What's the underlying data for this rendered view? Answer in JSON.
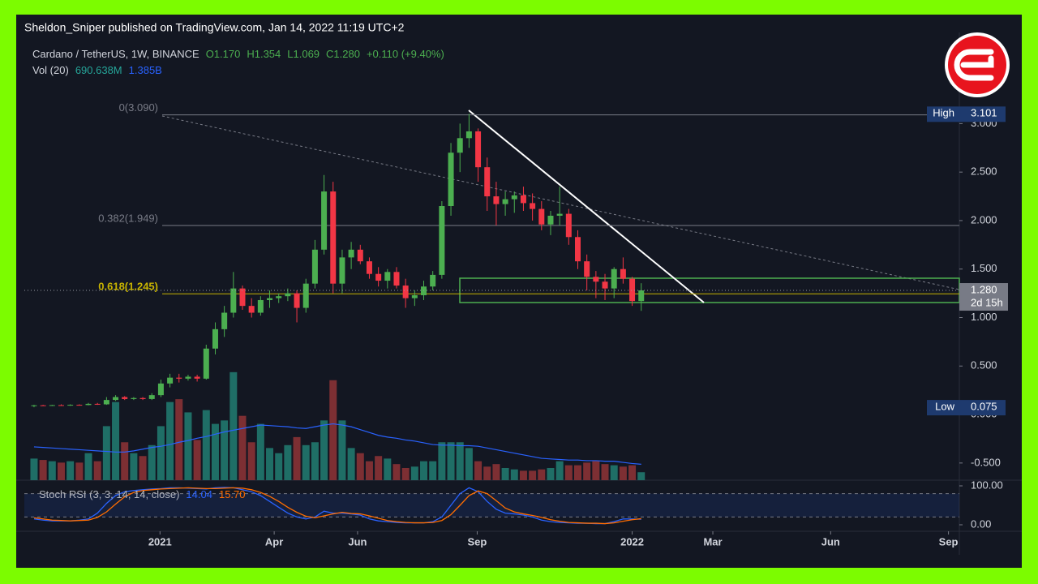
{
  "header": {
    "title": "Sheldon_Sniper published on TradingView.com, Jan 14, 2022 11:19 UTC+2"
  },
  "chart_data": {
    "type": "candlestick",
    "legend_items": {
      "symbol": "Cardano / TetherUS, 1W, BINANCE",
      "open": "O1.170",
      "high": "H1.354",
      "low": "L1.069",
      "close": "C1.280",
      "change": "+0.110 (+9.40%)"
    },
    "xlim": [
      -1.07,
      102.1
    ],
    "xticks": [
      {
        "value": 13.9,
        "label": "2021"
      },
      {
        "value": 26.5,
        "label": "Apr"
      },
      {
        "value": 35.7,
        "label": "Jun"
      },
      {
        "value": 48.9,
        "label": "Sep"
      },
      {
        "value": 66.0,
        "label": "2022"
      },
      {
        "value": 74.9,
        "label": "Mar"
      },
      {
        "value": 87.9,
        "label": "Jun"
      },
      {
        "value": 100.9,
        "label": "Sep"
      }
    ],
    "ylim": [
      -0.677,
      3.94
    ],
    "yticks": [
      {
        "value": 3,
        "label": "3.000"
      },
      {
        "value": 2.5,
        "label": "2.500"
      },
      {
        "value": 2,
        "label": "2.000"
      },
      {
        "value": 1.5,
        "label": "1.500"
      },
      {
        "value": 1,
        "label": "1.000"
      },
      {
        "value": 0.5,
        "label": "0.500"
      },
      {
        "value": 0,
        "label": "0.000"
      },
      {
        "value": -0.5,
        "label": "-0.500"
      }
    ],
    "grid": false,
    "up_color": "#4caf50",
    "down_color": "#f23645",
    "open": [
      0.09,
      0.095,
      0.092,
      0.097,
      0.095,
      0.1,
      0.098,
      0.11,
      0.105,
      0.15,
      0.18,
      0.16,
      0.17,
      0.16,
      0.2,
      0.32,
      0.38,
      0.37,
      0.39,
      0.37,
      0.68,
      0.88,
      1.05,
      1.3,
      1.12,
      1.05,
      1.18,
      1.2,
      1.22,
      1.25,
      1.1,
      1.35,
      1.7,
      2.3,
      1.35,
      1.62,
      1.7,
      1.58,
      1.45,
      1.38,
      1.47,
      1.33,
      1.2,
      1.23,
      1.32,
      1.44,
      2.15,
      2.7,
      2.85,
      2.92,
      2.55,
      2.25,
      2.17,
      2.22,
      2.26,
      2.18,
      2.12,
      1.96,
      2.05,
      2.07,
      1.83,
      1.58,
      1.42,
      1.37,
      1.3,
      1.5,
      1.4,
      1.17
    ],
    "high": [
      0.1,
      0.1,
      0.1,
      0.105,
      0.105,
      0.105,
      0.12,
      0.12,
      0.18,
      0.2,
      0.19,
      0.18,
      0.18,
      0.22,
      0.36,
      0.42,
      0.42,
      0.41,
      0.41,
      0.72,
      0.95,
      1.12,
      1.47,
      1.33,
      1.2,
      1.22,
      1.28,
      1.25,
      1.3,
      1.28,
      1.4,
      1.8,
      2.47,
      2.4,
      1.7,
      1.78,
      1.75,
      1.62,
      1.52,
      1.5,
      1.52,
      1.4,
      1.28,
      1.38,
      1.48,
      2.2,
      2.8,
      3.0,
      3.101,
      2.95,
      2.65,
      2.4,
      2.3,
      2.3,
      2.35,
      2.28,
      2.2,
      2.1,
      2.35,
      2.12,
      1.9,
      1.65,
      1.48,
      1.45,
      1.52,
      1.62,
      1.42,
      1.354
    ],
    "low": [
      0.075,
      0.09,
      0.088,
      0.09,
      0.09,
      0.095,
      0.095,
      0.1,
      0.1,
      0.14,
      0.15,
      0.15,
      0.15,
      0.15,
      0.18,
      0.28,
      0.33,
      0.35,
      0.34,
      0.36,
      0.62,
      0.8,
      1.0,
      1.08,
      1.0,
      1.02,
      1.1,
      1.15,
      1.17,
      0.95,
      1.05,
      1.3,
      1.65,
      1.25,
      1.25,
      1.5,
      1.55,
      1.4,
      1.32,
      1.3,
      1.3,
      1.1,
      1.12,
      1.18,
      1.28,
      1.4,
      2.05,
      2.5,
      2.75,
      2.4,
      2.1,
      1.95,
      2.05,
      2.08,
      2.1,
      2.0,
      1.9,
      1.85,
      1.95,
      1.75,
      1.5,
      1.28,
      1.2,
      1.18,
      1.2,
      1.35,
      1.12,
      1.069
    ],
    "close": [
      0.095,
      0.092,
      0.097,
      0.095,
      0.1,
      0.098,
      0.11,
      0.105,
      0.15,
      0.18,
      0.16,
      0.17,
      0.16,
      0.2,
      0.32,
      0.38,
      0.37,
      0.39,
      0.37,
      0.68,
      0.88,
      1.05,
      1.3,
      1.12,
      1.05,
      1.18,
      1.2,
      1.22,
      1.25,
      1.1,
      1.35,
      1.7,
      2.3,
      1.35,
      1.62,
      1.7,
      1.58,
      1.45,
      1.38,
      1.47,
      1.33,
      1.2,
      1.23,
      1.32,
      1.44,
      2.15,
      2.7,
      2.85,
      2.92,
      2.55,
      2.25,
      2.17,
      2.22,
      2.26,
      2.18,
      2.12,
      1.96,
      2.05,
      2.07,
      1.83,
      1.58,
      1.42,
      1.37,
      1.3,
      1.5,
      1.4,
      1.17,
      1.28
    ],
    "fib_levels": [
      {
        "label": "0(3.090)",
        "value": 3.09,
        "color": "#787b86"
      },
      {
        "label": "0.382(1.949)",
        "value": 1.949,
        "color": "#787b86"
      },
      {
        "label": "0.618(1.245)",
        "value": 1.245,
        "color": "#c8b400"
      }
    ],
    "high_marker": {
      "label": "High",
      "value_label": "3.101",
      "value": 3.101
    },
    "low_marker": {
      "label": "Low",
      "value_label": "0.075",
      "value": 0.075
    },
    "last_price": {
      "value_label": "1.280",
      "value": 1.28,
      "countdown": "2d 15h"
    },
    "volume": {
      "name": "Vol (20)",
      "vlim": [
        0,
        12000
      ],
      "last_label": "690.638M",
      "ma_last_label": "1.385B",
      "ma_color": "#2962ff",
      "values": [
        1880,
        1760,
        1650,
        1530,
        1650,
        1530,
        2350,
        1650,
        4700,
        6800,
        3300,
        2350,
        2100,
        3050,
        4700,
        6800,
        7050,
        5900,
        3500,
        6100,
        4900,
        5200,
        9400,
        5600,
        3300,
        4900,
        2800,
        2350,
        3050,
        3750,
        3050,
        3300,
        5200,
        8700,
        5200,
        2800,
        2350,
        1650,
        2100,
        1880,
        1400,
        1060,
        1180,
        1650,
        1650,
        3300,
        3300,
        3300,
        2800,
        1650,
        1180,
        1400,
        1060,
        940,
        820,
        820,
        940,
        1060,
        1650,
        1300,
        1300,
        1530,
        1650,
        1400,
        1300,
        1180,
        1300,
        690.638
      ],
      "ma": [
        2900,
        2850,
        2800,
        2750,
        2700,
        2650,
        2600,
        2550,
        2500,
        2450,
        2450,
        2550,
        2700,
        2850,
        2950,
        3100,
        3300,
        3450,
        3650,
        3800,
        4000,
        4200,
        4350,
        4500,
        4650,
        4800,
        4750,
        4700,
        4650,
        4550,
        4500,
        4650,
        4800,
        4900,
        4800,
        4650,
        4400,
        4150,
        3900,
        3750,
        3650,
        3500,
        3400,
        3250,
        3100,
        3050,
        3050,
        3000,
        3000,
        2950,
        2800,
        2650,
        2500,
        2350,
        2200,
        2050,
        1900,
        1850,
        1800,
        1750,
        1750,
        1700,
        1700,
        1650,
        1650,
        1550,
        1450,
        1385
      ]
    },
    "stoch": {
      "name": "Stoch RSI (3, 3, 14, 14, close)",
      "ylim": [
        -16.7,
        112.5
      ],
      "yticks": [
        {
          "value": 100,
          "label": "100.00"
        },
        {
          "value": 0,
          "label": "0.00"
        }
      ],
      "bands": [
        20,
        80
      ],
      "k_color": "#2962ff",
      "d_color": "#ff6d00",
      "d_last_label": "15.70",
      "k": [
        15,
        12,
        10,
        10,
        10,
        12,
        15,
        30,
        55,
        75,
        85,
        88,
        90,
        92,
        93,
        95,
        95,
        94,
        93,
        92,
        95,
        96,
        95,
        90,
        85,
        75,
        60,
        45,
        30,
        20,
        15,
        20,
        35,
        30,
        30,
        28,
        25,
        15,
        10,
        8,
        6,
        5,
        5,
        5,
        8,
        20,
        50,
        80,
        95,
        85,
        60,
        40,
        30,
        28,
        25,
        20,
        12,
        8,
        6,
        5,
        4,
        4,
        3,
        3,
        8,
        15,
        15,
        14.04
      ],
      "d": [
        18,
        15,
        12,
        11,
        10,
        11,
        12,
        19,
        33,
        53,
        72,
        83,
        88,
        90,
        92,
        93,
        94,
        95,
        94,
        93,
        93,
        94,
        95,
        94,
        90,
        83,
        73,
        60,
        45,
        32,
        22,
        18,
        23,
        28,
        32,
        29,
        28,
        23,
        17,
        11,
        8,
        6,
        5,
        5,
        6,
        11,
        26,
        50,
        75,
        87,
        80,
        62,
        43,
        33,
        28,
        24,
        19,
        13,
        9,
        6,
        5,
        4,
        4,
        3,
        5,
        9,
        13,
        15.7
      ]
    }
  }
}
